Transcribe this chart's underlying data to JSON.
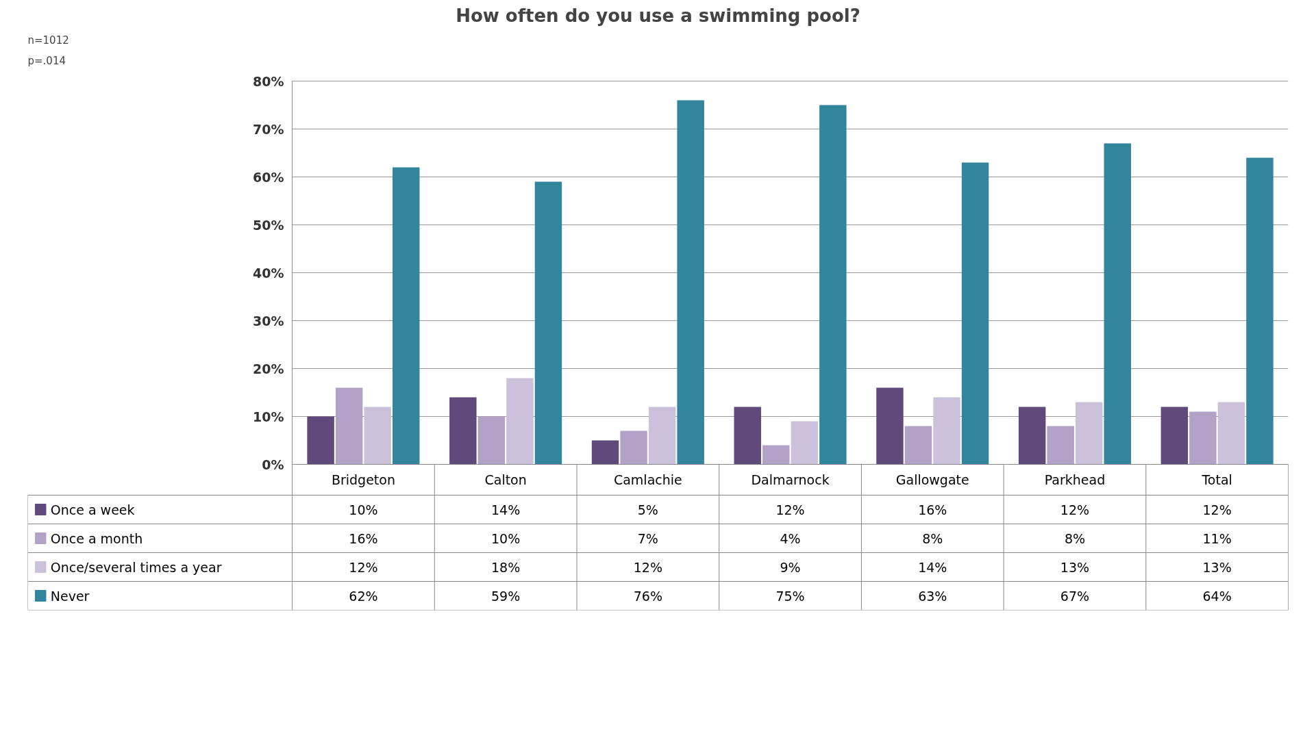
{
  "chart_data": {
    "type": "bar",
    "title": "How often do you use a swimming pool?",
    "annotations": [
      "n=1012",
      "p=.014"
    ],
    "categories": [
      "Bridgeton",
      "Calton",
      "Camlachie",
      "Dalmarnock",
      "Gallowgate",
      "Parkhead",
      "Total"
    ],
    "series": [
      {
        "name": "Once a week",
        "color": "#604a7b",
        "values": [
          10,
          14,
          5,
          12,
          16,
          12,
          12
        ],
        "value_labels": [
          "10%",
          "14%",
          "5%",
          "12%",
          "16%",
          "12%",
          "12%"
        ]
      },
      {
        "name": "Once a month",
        "color": "#b3a2c7",
        "values": [
          16,
          10,
          7,
          4,
          8,
          8,
          11
        ],
        "value_labels": [
          "16%",
          "10%",
          "7%",
          "4%",
          "8%",
          "8%",
          "11%"
        ]
      },
      {
        "name": "Once/several times a year",
        "color": "#ccc1da",
        "values": [
          12,
          18,
          12,
          9,
          14,
          13,
          13
        ],
        "value_labels": [
          "12%",
          "18%",
          "12%",
          "9%",
          "14%",
          "13%",
          "13%"
        ]
      },
      {
        "name": "Never",
        "color": "#31859c",
        "values": [
          62,
          59,
          76,
          75,
          63,
          67,
          64
        ],
        "value_labels": [
          "62%",
          "59%",
          "76%",
          "75%",
          "63%",
          "67%",
          "64%"
        ]
      }
    ],
    "ylim": [
      0,
      80
    ],
    "yticks": [
      {
        "value": 0,
        "label": "0%"
      },
      {
        "value": 10,
        "label": "10%"
      },
      {
        "value": 20,
        "label": "20%"
      },
      {
        "value": 30,
        "label": "30%"
      },
      {
        "value": 40,
        "label": "40%"
      },
      {
        "value": 50,
        "label": "50%"
      },
      {
        "value": 60,
        "label": "60%"
      },
      {
        "value": 70,
        "label": "70%"
      },
      {
        "value": 80,
        "label": "80%"
      }
    ],
    "grid": "y",
    "legend": "bottom left"
  }
}
